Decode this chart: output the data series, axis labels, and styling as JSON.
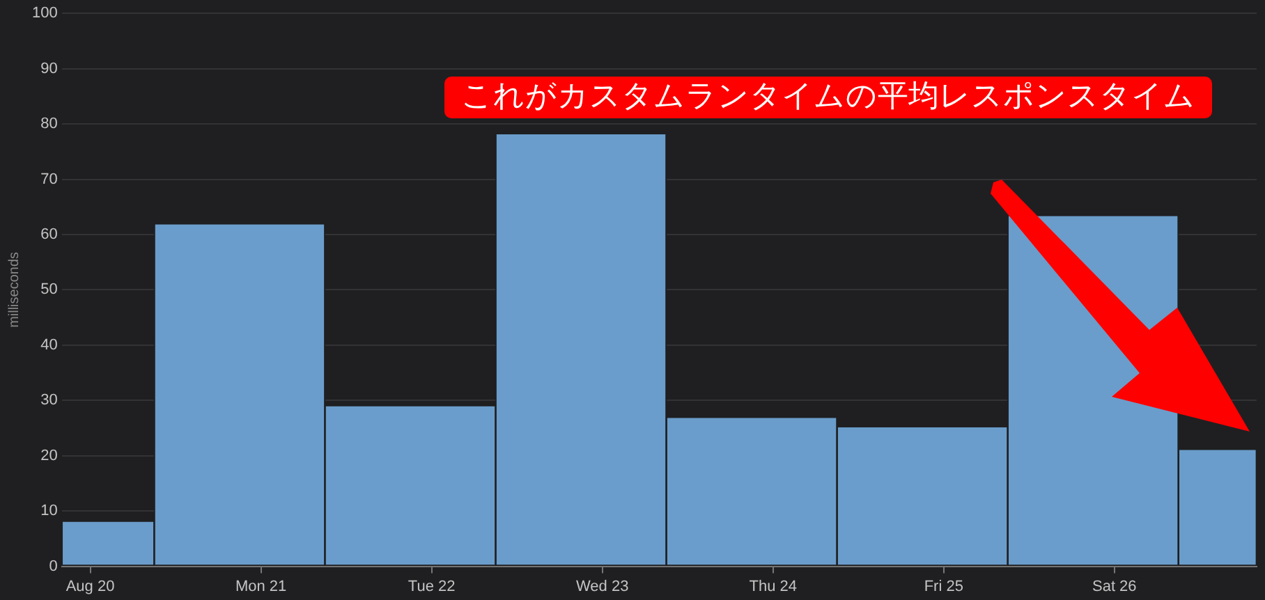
{
  "chart_data": {
    "type": "histogram",
    "ylabel": "milliseconds",
    "bins": [
      "--08-19T20:00",
      "--08-20T09:00",
      "--08-21T09:00",
      "--08-22T09:00",
      "--08-23T09:00",
      "--08-24T09:00",
      "--08-25T09:00",
      "--08-26T09:00",
      "--08-26T20:00"
    ],
    "values": [
      8.2,
      62,
      29.1,
      78.3,
      27,
      25.3,
      63.5,
      21.2
    ],
    "color": "#6a9dcb",
    "xlim": [
      "--08-19T20:00",
      "--08-26T20:00"
    ],
    "xticks": [
      {
        "value": "--08-20",
        "label": "Aug 20"
      },
      {
        "value": "--08-21",
        "label": "Mon 21"
      },
      {
        "value": "--08-22",
        "label": "Tue 22"
      },
      {
        "value": "--08-23",
        "label": "Wed 23"
      },
      {
        "value": "--08-24",
        "label": "Thu 24"
      },
      {
        "value": "--08-25",
        "label": "Fri 25"
      },
      {
        "value": "--08-26",
        "label": "Sat 26"
      }
    ],
    "ylim": [
      0,
      100
    ],
    "yticks": [
      0,
      10,
      20,
      30,
      40,
      50,
      60,
      70,
      80,
      90,
      100
    ],
    "grid": "y",
    "legend": false,
    "annotations": [
      "これがカスタムランタイムの平均レスポンスタイム"
    ]
  }
}
